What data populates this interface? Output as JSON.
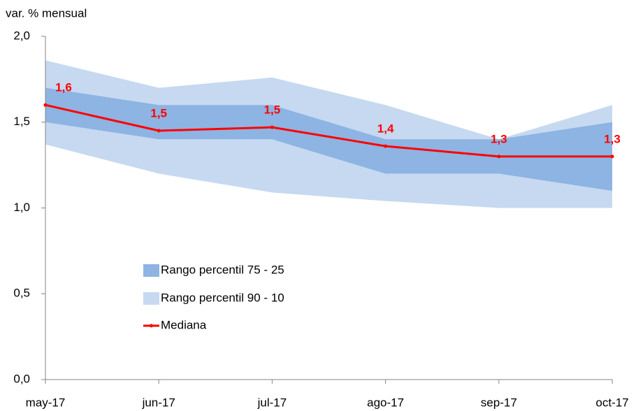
{
  "chart_data": {
    "type": "band-line",
    "y_label": "var. % mensual",
    "categories": [
      "may-17",
      "jun-17",
      "jul-17",
      "ago-17",
      "sep-17",
      "oct-17"
    ],
    "ylim": [
      0,
      2
    ],
    "yticks": [
      {
        "value": 0,
        "label": "0,0"
      },
      {
        "value": 0.5,
        "label": "0,5"
      },
      {
        "value": 1,
        "label": "1,0"
      },
      {
        "value": 1.5,
        "label": "1,5"
      },
      {
        "value": 2,
        "label": "2,0"
      }
    ],
    "series": [
      {
        "name": "Rango percentil 75 - 25",
        "color": "#8db4e2",
        "lower": [
          1.5,
          1.4,
          1.4,
          1.2,
          1.2,
          1.1
        ],
        "upper": [
          1.7,
          1.6,
          1.6,
          1.4,
          1.4,
          1.5
        ]
      },
      {
        "name": "Rango percentil 90 - 10",
        "color": "#c6d9f1",
        "lower": [
          1.37,
          1.2,
          1.09,
          1.04,
          1.0,
          1.0
        ],
        "upper": [
          1.86,
          1.7,
          1.76,
          1.6,
          1.4,
          1.6
        ]
      },
      {
        "name": "Mediana",
        "color": "#ff0000",
        "values": [
          1.6,
          1.45,
          1.47,
          1.36,
          1.3,
          1.3
        ],
        "value_labels": [
          "1,6",
          "1,5",
          "1,5",
          "1,4",
          "1,3",
          "1,3"
        ]
      }
    ]
  }
}
